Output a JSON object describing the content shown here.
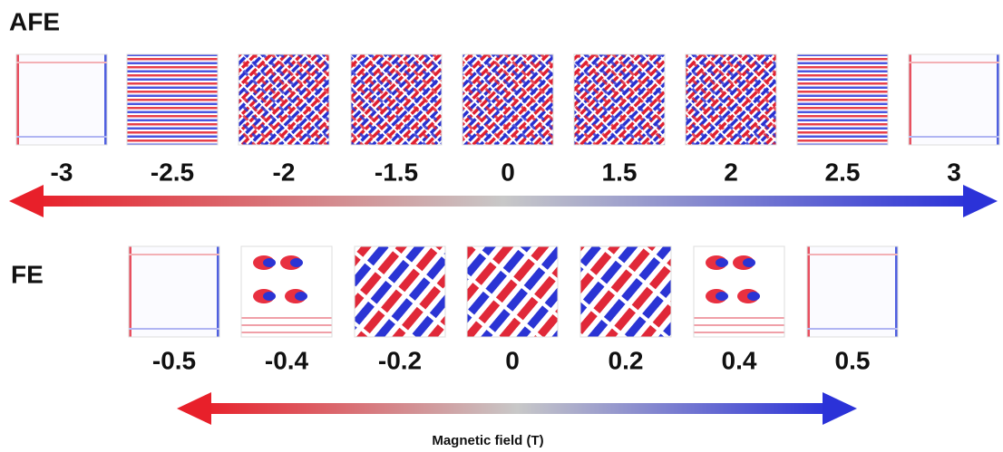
{
  "rows": [
    {
      "label": "AFE",
      "fields": [
        "-3",
        "-2.5",
        "-2",
        "-1.5",
        "0",
        "1.5",
        "2",
        "2.5",
        "3"
      ]
    },
    {
      "label": "FE",
      "fields": [
        "-0.5",
        "-0.4",
        "-0.2",
        "0",
        "0.2",
        "0.4",
        "0.5"
      ]
    }
  ],
  "axis_label": "Magnetic field (T)"
}
